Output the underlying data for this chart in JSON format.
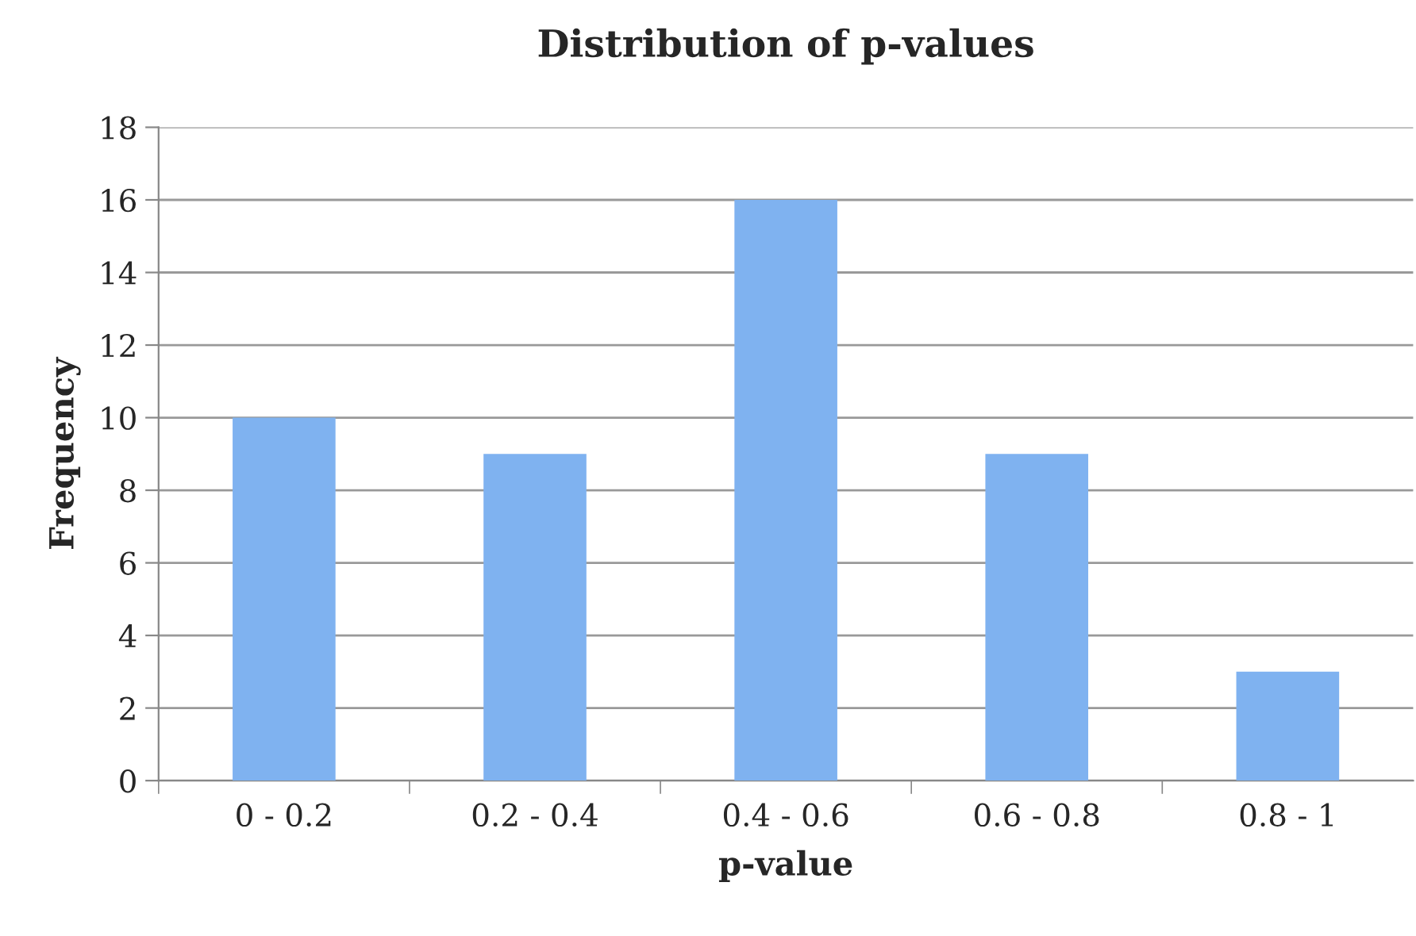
{
  "chart_data": {
    "type": "bar",
    "title": "Distribution of p-values",
    "xlabel": "p-value",
    "ylabel": "Frequency",
    "categories": [
      "0 - 0.2",
      "0.2 - 0.4",
      "0.4 - 0.6",
      "0.6 - 0.8",
      "0.8 - 1"
    ],
    "values": [
      10,
      9,
      16,
      9,
      3
    ],
    "color": "#7fb2f0",
    "ylim": [
      0,
      18
    ],
    "yticks": [
      0,
      2,
      4,
      6,
      8,
      10,
      12,
      14,
      16,
      18
    ],
    "grid": "y",
    "legend": false
  }
}
